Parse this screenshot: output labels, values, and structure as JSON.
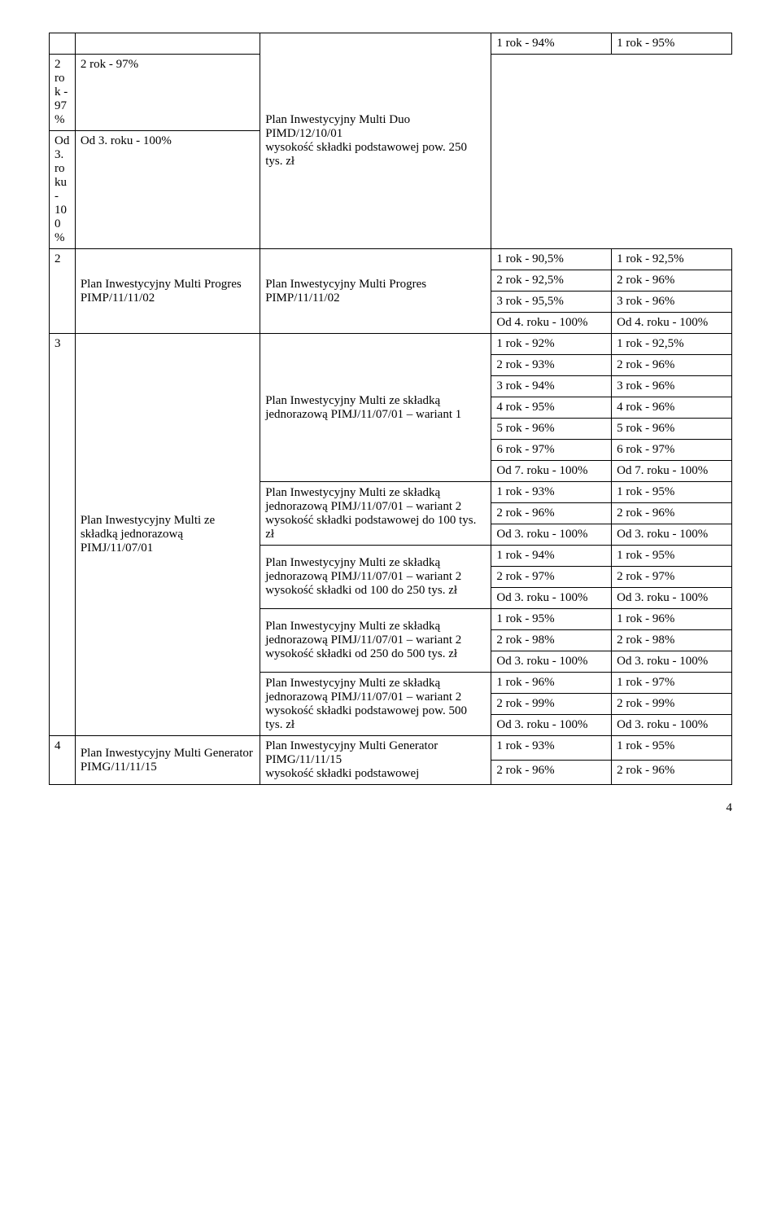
{
  "pageNumber": "4",
  "rows": [
    {
      "idx": "",
      "name": "",
      "plan": "Plan Inwestycyjny Multi Duo PIMD/12/10/01\nwysokość składki podstawowej pow. 250 tys. zł",
      "idx_rowspan": 1,
      "name_rowspan": 1,
      "plan_rowspan": 3,
      "v1": "1 rok - 94%",
      "v2": "1 rok  - 95%"
    },
    {
      "v1": "2 rok - 97%",
      "v2": "2 rok  - 97%"
    },
    {
      "v1": "Od 3. roku - 100%",
      "v2": "Od 3. roku  - 100%"
    },
    {
      "idx": "2",
      "name": "Plan Inwestycyjny Multi Progres PIMP/11/11/02",
      "plan": "Plan Inwestycyjny Multi Progres  PIMP/11/11/02",
      "idx_rowspan": 4,
      "name_rowspan": 4,
      "plan_rowspan": 4,
      "v1": "1 rok - 90,5%",
      "v2": "1 rok  - 92,5%"
    },
    {
      "v1": "2 rok - 92,5%",
      "v2": "2 rok  - 96%"
    },
    {
      "v1": "3 rok - 95,5%",
      "v2": "3 rok  - 96%"
    },
    {
      "v1": "Od 4. roku - 100%",
      "v2": "Od 4. roku  - 100%"
    },
    {
      "idx": "3",
      "name": "Plan Inwestycyjny Multi ze składką jednorazową PIMJ/11/07/01",
      "plan": "Plan Inwestycyjny Multi ze składką jednorazową PIMJ/11/07/01 – wariant 1",
      "idx_rowspan": 19,
      "name_rowspan": 19,
      "plan_rowspan": 7,
      "v1": "1 rok - 92%",
      "v2": "1 rok  - 92,5%"
    },
    {
      "v1": "2 rok - 93%",
      "v2": "2 rok  - 96%"
    },
    {
      "v1": "3 rok - 94%",
      "v2": "3 rok  - 96%"
    },
    {
      "v1": "4 rok - 95%",
      "v2": "4 rok  - 96%"
    },
    {
      "v1": "5 rok - 96%",
      "v2": "5 rok  - 96%"
    },
    {
      "v1": "6 rok - 97%",
      "v2": "6 rok  - 97%"
    },
    {
      "v1": "Od 7. roku - 100%",
      "v2": "Od 7. roku  - 100%"
    },
    {
      "plan": "Plan Inwestycyjny Multi ze składką jednorazową PIMJ/11/07/01 – wariant 2\nwysokość składki podstawowej do 100 tys. zł",
      "plan_rowspan": 3,
      "v1": "1 rok - 93%",
      "v2": "1 rok  - 95%"
    },
    {
      "v1": "2 rok - 96%",
      "v2": "2 rok  - 96%"
    },
    {
      "v1": "Od 3. roku - 100%",
      "v2": "Od 3. roku  - 100%"
    },
    {
      "plan": "Plan Inwestycyjny Multi ze składką jednorazową PIMJ/11/07/01 – wariant 2\nwysokość składki od 100 do 250 tys. zł",
      "plan_rowspan": 3,
      "v1": "1 rok - 94%",
      "v2": "1 rok  - 95%"
    },
    {
      "v1": "2 rok - 97%",
      "v2": "2 rok  - 97%"
    },
    {
      "v1": "Od 3. roku - 100%",
      "v2": "Od 3. roku  - 100%"
    },
    {
      "plan": "Plan Inwestycyjny Multi ze składką jednorazową PIMJ/11/07/01 – wariant 2\nwysokość składki od 250 do 500 tys. zł",
      "plan_rowspan": 3,
      "v1": "1 rok - 95%",
      "v2": "1 rok  - 96%"
    },
    {
      "v1": "2 rok - 98%",
      "v2": "2 rok  - 98%"
    },
    {
      "v1": "Od 3. roku - 100%",
      "v2": "Od 3. roku  - 100%"
    },
    {
      "plan": "Plan Inwestycyjny Multi ze składką jednorazową PIMJ/11/07/01 – wariant 2\nwysokość składki podstawowej pow. 500 tys. zł",
      "plan_rowspan": 3,
      "v1": "1 rok - 96%",
      "v2": "1 rok  - 97%"
    },
    {
      "v1": "2 rok - 99%",
      "v2": "2 rok  - 99%"
    },
    {
      "v1": "Od 3. roku - 100%",
      "v2": "Od 3. roku  - 100%"
    },
    {
      "idx": "4",
      "name": "Plan Inwestycyjny Multi Generator PIMG/11/11/15",
      "plan": "Plan Inwestycyjny Multi Generator PIMG/11/11/15\nwysokość składki podstawowej",
      "idx_rowspan": 2,
      "name_rowspan": 2,
      "plan_rowspan": 2,
      "v1": "1 rok - 93%",
      "v2": "1 rok  - 95%"
    },
    {
      "v1": "2 rok - 96%",
      "v2": "2 rok  - 96%"
    }
  ]
}
